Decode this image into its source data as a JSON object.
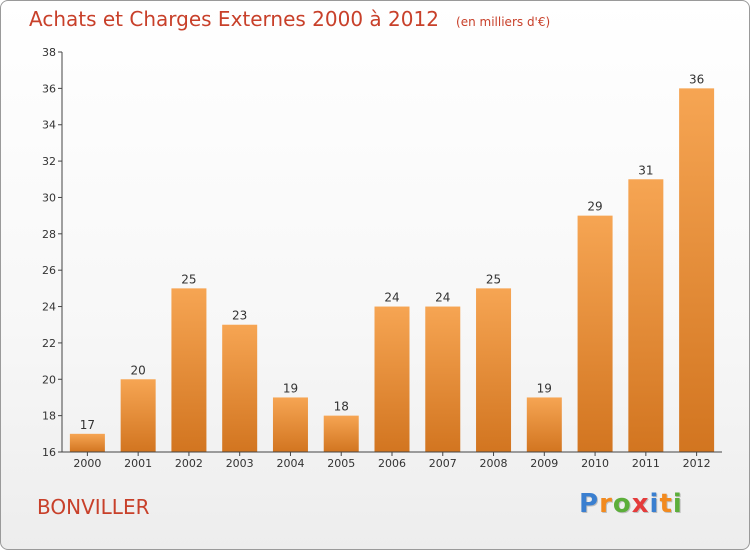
{
  "chart_data": {
    "type": "bar",
    "title": "Achats et Charges Externes 2000 à 2012",
    "unit_label": "(en milliers d'€)",
    "categories": [
      "2000",
      "2001",
      "2002",
      "2003",
      "2004",
      "2005",
      "2006",
      "2007",
      "2008",
      "2009",
      "2010",
      "2011",
      "2012"
    ],
    "values": [
      17,
      20,
      25,
      23,
      19,
      18,
      24,
      24,
      25,
      19,
      29,
      31,
      36
    ],
    "ylim": [
      16,
      38
    ],
    "yticks": [
      16,
      18,
      20,
      22,
      24,
      26,
      28,
      30,
      32,
      34,
      36,
      38
    ],
    "grid": false,
    "bar_color_top": "#f6a553",
    "bar_color_bottom": "#d27520"
  },
  "location": "BONVILLER",
  "logo": {
    "letters": [
      "P",
      "r",
      "o",
      "x",
      "i",
      "t",
      "i"
    ],
    "colors": [
      "#3a7fd0",
      "#f28a1e",
      "#5cae3a",
      "#e43b3b",
      "#3a7fd0",
      "#f28a1e",
      "#5cae3a"
    ]
  },
  "colors": {
    "title": "#c8402a",
    "axis": "#444444"
  }
}
